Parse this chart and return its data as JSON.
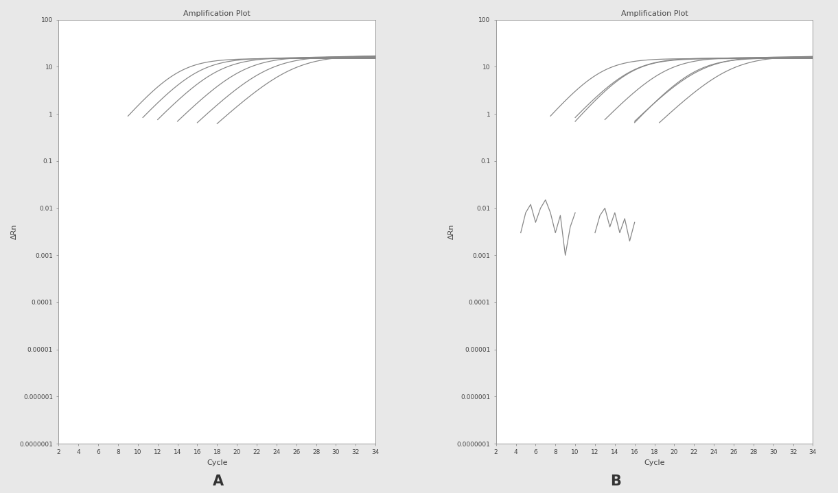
{
  "title": "Amplification Plot",
  "xlabel": "Cycle",
  "ylabel": "ΔRn",
  "xlim": [
    2,
    34
  ],
  "ylim_log": [
    1e-07,
    100
  ],
  "yticks": [
    1e-07,
    1e-06,
    1e-05,
    0.0001,
    0.001,
    0.01,
    0.1,
    1,
    10,
    100
  ],
  "ytick_labels": [
    "0.0000001",
    "0.000001",
    "0.00001",
    "0.0001",
    "0.001",
    "0.01",
    "0.1",
    "1",
    "10",
    "100"
  ],
  "xticks": [
    2,
    4,
    6,
    8,
    10,
    12,
    14,
    16,
    18,
    20,
    22,
    24,
    26,
    28,
    30,
    32,
    34
  ],
  "line_color": "#888888",
  "line_width": 0.9,
  "bg_color": "#ffffff",
  "fig_bg_color": "#e8e8e8",
  "label_A": "A",
  "label_B": "B",
  "fig_width": 12.21,
  "fig_height": 7.19,
  "dpi": 100,
  "panel_A": {
    "curves": [
      {
        "x_start": 9.0,
        "plateau": 15.0,
        "slope": 0.55,
        "k": 5.0,
        "y0": 0.03
      },
      {
        "x_start": 10.5,
        "plateau": 15.5,
        "slope": 0.52,
        "k": 5.5,
        "y0": 0.018
      },
      {
        "x_start": 12.0,
        "plateau": 16.0,
        "slope": 0.5,
        "k": 6.0,
        "y0": 0.01
      },
      {
        "x_start": 14.0,
        "plateau": 16.5,
        "slope": 0.48,
        "k": 6.5,
        "y0": 0.007
      },
      {
        "x_start": 16.0,
        "plateau": 17.0,
        "slope": 0.46,
        "k": 7.0,
        "y0": 0.005
      },
      {
        "x_start": 18.0,
        "plateau": 17.5,
        "slope": 0.44,
        "k": 7.5,
        "y0": 0.004
      }
    ]
  },
  "panel_B": {
    "smooth_curves": [
      {
        "x_start": 7.5,
        "plateau": 15.0,
        "slope": 0.55,
        "k": 5.0,
        "y0": 0.03
      },
      {
        "x_start": 10.0,
        "plateau": 15.5,
        "slope": 0.52,
        "k": 5.5,
        "y0": 0.018
      },
      {
        "x_start": 13.0,
        "plateau": 16.0,
        "slope": 0.5,
        "k": 6.0,
        "y0": 0.01
      },
      {
        "x_start": 16.0,
        "plateau": 16.5,
        "slope": 0.48,
        "k": 6.5,
        "y0": 0.007
      },
      {
        "x_start": 18.5,
        "plateau": 17.0,
        "slope": 0.46,
        "k": 7.0,
        "y0": 0.005
      }
    ],
    "noisy_curves": [
      {
        "noise_x": [
          4.5,
          5.0,
          5.5,
          6.0,
          6.5,
          7.0,
          7.5,
          8.0,
          8.5,
          9.0,
          9.5,
          10.0
        ],
        "noise_y": [
          0.003,
          0.008,
          0.012,
          0.005,
          0.01,
          0.015,
          0.008,
          0.003,
          0.007,
          0.001,
          0.004,
          0.008
        ],
        "sigmoid_x_start": 10.0,
        "plateau": 15.0,
        "slope": 0.55,
        "k": 5.5
      },
      {
        "noise_x": [
          12.0,
          12.5,
          13.0,
          13.5,
          14.0,
          14.5,
          15.0,
          15.5,
          16.0
        ],
        "noise_y": [
          0.003,
          0.007,
          0.01,
          0.004,
          0.008,
          0.003,
          0.006,
          0.002,
          0.005
        ],
        "sigmoid_x_start": 16.0,
        "plateau": 15.5,
        "slope": 0.52,
        "k": 6.0
      }
    ]
  }
}
